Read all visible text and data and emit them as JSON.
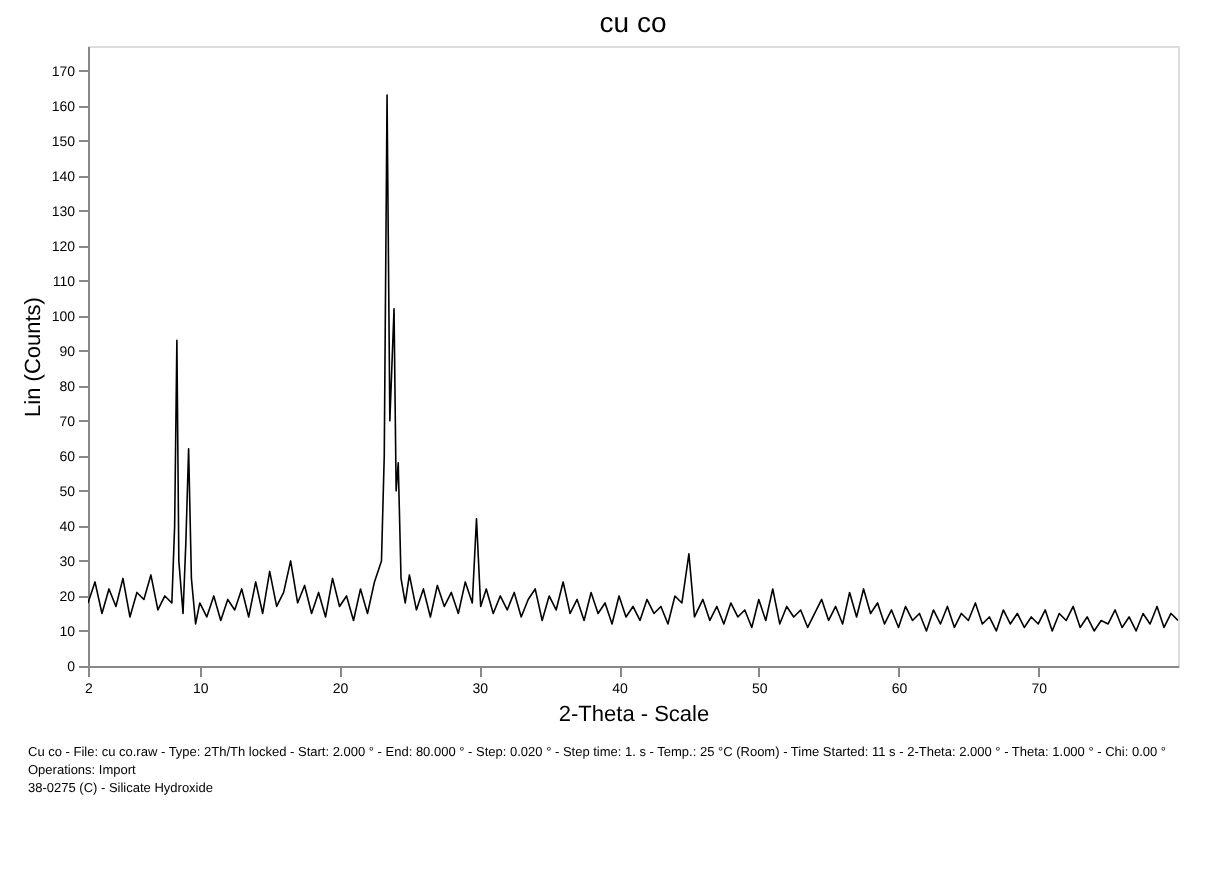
{
  "chart_data": {
    "type": "line",
    "title": "cu co",
    "xlabel": "2-Theta - Scale",
    "ylabel": "Lin (Counts)",
    "xlim": [
      2,
      80
    ],
    "xticks": [
      2,
      10,
      20,
      30,
      40,
      50,
      60,
      70
    ],
    "ylim": [
      0,
      177
    ],
    "yticks": [
      0,
      10,
      20,
      30,
      40,
      50,
      60,
      70,
      80,
      90,
      100,
      110,
      120,
      130,
      140,
      150,
      160,
      170
    ],
    "grid": false,
    "marker": "none",
    "line_style": "solid",
    "annotations": [
      "Cu co - File: cu co.raw - Type: 2Th/Th locked - Start: 2.000 ° - End: 80.000 ° - Step: 0.020 ° - Step time: 1. s - Temp.: 25 °C (Room) - Time Started: 11 s - 2-Theta: 2.000 ° - Theta: 1.000 ° - Chi: 0.00 °",
      "Operations: Import",
      "38-0275 (C) - Silicate Hydroxide"
    ],
    "series": [
      {
        "color": "#000000",
        "x": [
          2,
          2.5,
          3,
          3.5,
          4,
          4.5,
          5,
          5.5,
          6,
          6.5,
          7,
          7.5,
          8,
          8.2,
          8.36,
          8.5,
          8.8,
          9.0,
          9.2,
          9.4,
          9.7,
          10,
          10.5,
          11,
          11.5,
          12,
          12.5,
          13,
          13.5,
          14,
          14.5,
          15,
          15.5,
          16,
          16.5,
          17,
          17.5,
          18,
          18.5,
          19,
          19.5,
          20,
          20.5,
          21,
          21.5,
          22,
          22.5,
          23,
          23.2,
          23.4,
          23.6,
          23.9,
          24.05,
          24.2,
          24.4,
          24.7,
          25,
          25.5,
          26,
          26.5,
          27,
          27.5,
          28,
          28.5,
          29,
          29.5,
          29.8,
          30.1,
          30.5,
          31,
          31.5,
          32,
          32.5,
          33,
          33.5,
          34,
          34.5,
          35,
          35.5,
          36,
          36.5,
          37,
          37.5,
          38,
          38.5,
          39,
          39.5,
          40,
          40.5,
          41,
          41.5,
          42,
          42.5,
          43,
          43.5,
          44,
          44.5,
          45,
          45.4,
          46,
          46.5,
          47,
          47.5,
          48,
          48.5,
          49,
          49.5,
          50,
          50.5,
          51,
          51.5,
          52,
          52.5,
          53,
          53.5,
          54,
          54.5,
          55,
          55.5,
          56,
          56.5,
          57,
          57.5,
          58,
          58.5,
          59,
          59.5,
          60,
          60.5,
          61,
          61.5,
          62,
          62.5,
          63,
          63.5,
          64,
          64.5,
          65,
          65.5,
          66,
          66.5,
          67,
          67.5,
          68,
          68.5,
          69,
          69.5,
          70,
          70.5,
          71,
          71.5,
          72,
          72.5,
          73,
          73.5,
          74,
          74.5,
          75,
          75.5,
          76,
          76.5,
          77,
          77.5,
          78,
          78.5,
          79,
          79.5,
          80
        ],
        "values": [
          18,
          24,
          15,
          22,
          17,
          25,
          14,
          21,
          19,
          26,
          16,
          20,
          18,
          40,
          93,
          30,
          15,
          35,
          62,
          25,
          12,
          18,
          14,
          20,
          13,
          19,
          16,
          22,
          14,
          24,
          15,
          27,
          17,
          21,
          30,
          18,
          23,
          15,
          21,
          14,
          25,
          17,
          20,
          13,
          22,
          15,
          24,
          30,
          60,
          163,
          70,
          102,
          50,
          58,
          25,
          18,
          26,
          16,
          22,
          14,
          23,
          17,
          21,
          15,
          24,
          18,
          42,
          17,
          22,
          15,
          20,
          16,
          21,
          14,
          19,
          22,
          13,
          20,
          16,
          24,
          15,
          19,
          13,
          21,
          15,
          18,
          12,
          20,
          14,
          17,
          13,
          19,
          15,
          17,
          12,
          20,
          18,
          32,
          14,
          19,
          13,
          17,
          12,
          18,
          14,
          16,
          11,
          19,
          13,
          22,
          12,
          17,
          14,
          16,
          11,
          15,
          19,
          13,
          17,
          12,
          21,
          14,
          22,
          15,
          18,
          12,
          16,
          11,
          17,
          13,
          15,
          10,
          16,
          12,
          17,
          11,
          15,
          13,
          18,
          12,
          14,
          10,
          16,
          12,
          15,
          11,
          14,
          12,
          16,
          10,
          15,
          13,
          17,
          11,
          14,
          10,
          13,
          12,
          16,
          11,
          14,
          10,
          15,
          12,
          17,
          11,
          15,
          13
        ]
      }
    ]
  }
}
